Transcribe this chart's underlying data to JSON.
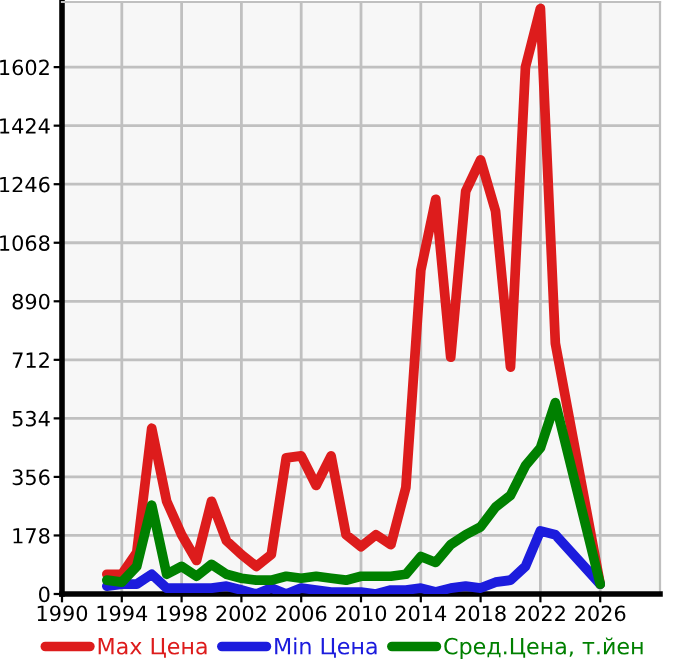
{
  "chart_data": {
    "type": "line",
    "x": [
      1993,
      1994,
      1995,
      1996,
      1997,
      1998,
      1999,
      2000,
      2001,
      2002,
      2003,
      2004,
      2005,
      2006,
      2007,
      2008,
      2009,
      2010,
      2011,
      2012,
      2013,
      2014,
      2015,
      2016,
      2017,
      2018,
      2019,
      2020,
      2021,
      2022,
      2023,
      2026
    ],
    "series": [
      {
        "name": "Max Цена",
        "color": "#dd1c1c",
        "values": [
          60,
          60,
          126,
          504,
          282,
          180,
          102,
          282,
          162,
          120,
          84,
          120,
          414,
          420,
          330,
          420,
          180,
          144,
          180,
          150,
          324,
          984,
          1200,
          720,
          1224,
          1320,
          1164,
          690,
          1602,
          1780,
          762,
          30
        ]
      },
      {
        "name": "Min Цена",
        "color": "#1c1cdd",
        "values": [
          24,
          30,
          30,
          60,
          18,
          18,
          18,
          18,
          24,
          12,
          0,
          18,
          0,
          18,
          12,
          6,
          6,
          6,
          0,
          12,
          12,
          18,
          6,
          18,
          24,
          18,
          36,
          42,
          84,
          192,
          180,
          30
        ]
      },
      {
        "name": "Сред.Цена, т.йен",
        "color": "#008000",
        "values": [
          42,
          36,
          84,
          270,
          60,
          84,
          54,
          90,
          60,
          48,
          42,
          42,
          54,
          48,
          54,
          48,
          42,
          54,
          54,
          54,
          60,
          114,
          96,
          150,
          180,
          204,
          264,
          300,
          390,
          444,
          582,
          30
        ]
      }
    ],
    "xlim": [
      1990,
      2030
    ],
    "xticks": [
      1990,
      1994,
      1998,
      2002,
      2006,
      2010,
      2014,
      2018,
      2022,
      2026
    ],
    "ylim": [
      0,
      1800
    ],
    "yticks": [
      0,
      178,
      356,
      534,
      712,
      890,
      1068,
      1246,
      1424,
      1602
    ],
    "grid": true,
    "legend": "bottom",
    "marker": "none",
    "line_style": "solid"
  }
}
